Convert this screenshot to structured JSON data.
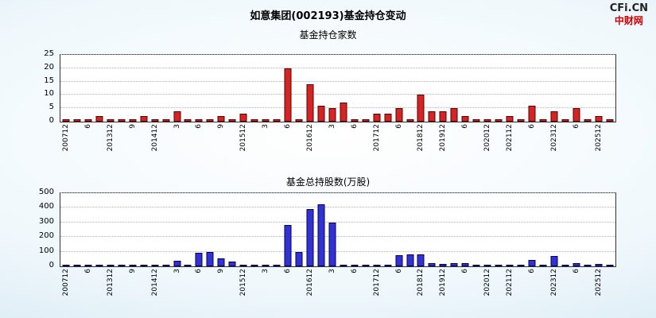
{
  "page": {
    "title": "如意集团(002193)基金持仓变动",
    "brand": {
      "line1": "CFi.CN",
      "line2": "中财网"
    }
  },
  "colors": {
    "brand_red": "#cc0000",
    "title_text": "#000000",
    "plot_background": "#ffffff",
    "grid_line": "#a9b6bf",
    "funds_bar": "#d42424",
    "shares_bar": "#3232d4"
  },
  "chart_data": [
    {
      "type": "bar",
      "title": "基金持仓家数",
      "xlabel": "",
      "ylabel": "",
      "ylim": [
        0,
        25
      ],
      "yticks": [
        0,
        5,
        10,
        15,
        20,
        25
      ],
      "grid": true,
      "legend": "none",
      "bar_color": "#d42424",
      "bar_border": "#550000",
      "categories": [
        "200712",
        "",
        "6",
        "",
        "201312",
        "",
        "9",
        "",
        "201412",
        "",
        "3",
        "",
        "6",
        "",
        "9",
        "",
        "201512",
        "",
        "3",
        "",
        "6",
        "",
        "201612",
        "",
        "3",
        "",
        "6",
        "",
        "201712",
        "",
        "6",
        "",
        "201812",
        "",
        "201912",
        "",
        "6",
        "",
        "202012",
        "",
        "202112",
        "",
        "6",
        "",
        "202312",
        "",
        "6",
        "",
        "202512",
        ""
      ],
      "values": [
        1,
        1,
        1,
        2,
        1,
        1,
        1,
        2,
        1,
        1,
        4,
        1,
        1,
        1,
        2,
        1,
        3,
        1,
        1,
        1,
        20,
        1,
        14,
        6,
        5,
        7,
        1,
        1,
        3,
        3,
        5,
        1,
        10,
        4,
        4,
        5,
        2,
        1,
        1,
        1,
        2,
        1,
        6,
        1,
        4,
        1,
        5,
        1,
        2,
        1
      ]
    },
    {
      "type": "bar",
      "title": "基金总持股数(万股)",
      "xlabel": "",
      "ylabel": "",
      "ylim": [
        0,
        500
      ],
      "yticks": [
        0,
        100,
        200,
        300,
        400,
        500
      ],
      "grid": true,
      "legend": "none",
      "bar_color": "#3232d4",
      "bar_border": "#000050",
      "categories": [
        "200712",
        "",
        "6",
        "",
        "201312",
        "",
        "9",
        "",
        "201412",
        "",
        "3",
        "",
        "6",
        "",
        "9",
        "",
        "201512",
        "",
        "3",
        "",
        "6",
        "",
        "201612",
        "",
        "3",
        "",
        "6",
        "",
        "201712",
        "",
        "6",
        "",
        "201812",
        "",
        "201912",
        "",
        "6",
        "",
        "202012",
        "",
        "202112",
        "",
        "6",
        "",
        "202312",
        "",
        "6",
        "",
        "202512",
        ""
      ],
      "values": [
        5,
        3,
        8,
        10,
        5,
        3,
        5,
        8,
        5,
        3,
        40,
        10,
        95,
        100,
        55,
        30,
        10,
        8,
        12,
        8,
        280,
        100,
        390,
        425,
        300,
        10,
        8,
        5,
        6,
        5,
        75,
        80,
        80,
        20,
        15,
        20,
        20,
        5,
        8,
        5,
        10,
        5,
        45,
        5,
        70,
        8,
        20,
        5,
        15,
        10
      ]
    }
  ]
}
